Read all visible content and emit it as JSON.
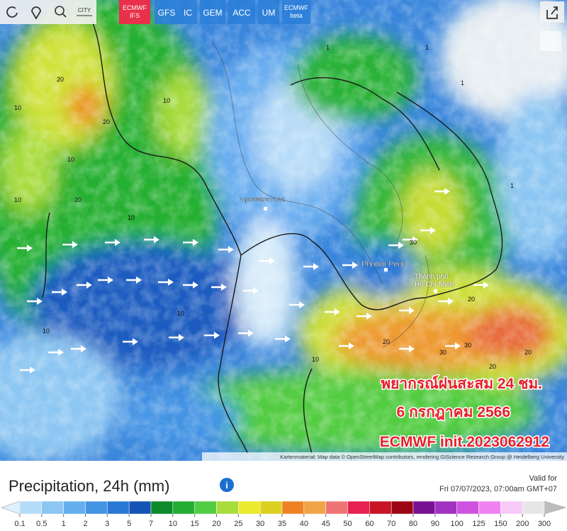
{
  "toolbar": {
    "city": "CITY"
  },
  "models": [
    "ECMWF IFS",
    "GFS",
    "IC",
    "GEM",
    "ACC",
    "UM",
    "ECMWF beta"
  ],
  "places": {
    "bangkok": "กรุงเทพมหานคร",
    "phnom_penh": "Phnom Penh",
    "hcmc": "Thành phố Hồ Chí Minh"
  },
  "contour_labels": [
    "20",
    "10",
    "20",
    "10",
    "20",
    "10",
    "1",
    "1",
    "1",
    "10",
    "10",
    "10",
    "20",
    "30",
    "30",
    "20",
    "20",
    "30",
    "20",
    "10",
    "1",
    "10"
  ],
  "overlay": {
    "line1": "พยากรณ์ฝนสะสม 24 ชม.",
    "line2": "6 กรกฎาคม 2566",
    "line3": "ECMWF init.2023062912"
  },
  "attribution": "Kartenmaterial: Map data © OpenStreetMap contributors, rendering GIScience Research Group @ Heidelberg University",
  "panel": {
    "title": "Precipitation, 24h (mm)",
    "valid_label": "Valid for",
    "valid_time": "Fri 07/07/2023, 07:00am GMT+07"
  },
  "legend": {
    "ticks": [
      0.1,
      0.5,
      1,
      2,
      3,
      5,
      7,
      10,
      15,
      20,
      25,
      30,
      35,
      40,
      45,
      50,
      60,
      70,
      80,
      90,
      100,
      125,
      150,
      200,
      300
    ],
    "colors": [
      "#b4dcf8",
      "#8cc6f2",
      "#64aeee",
      "#4494e4",
      "#2a78d6",
      "#1454b4",
      "#0c8a2c",
      "#22ae32",
      "#52cc42",
      "#a8dc3c",
      "#eaea2e",
      "#dcd020",
      "#ee8222",
      "#f0a448",
      "#f07474",
      "#e62252",
      "#c81424",
      "#9c0414",
      "#781294",
      "#a232c2",
      "#d052e0",
      "#f082f0",
      "#f8c8f8",
      "#e6e6e6"
    ]
  }
}
